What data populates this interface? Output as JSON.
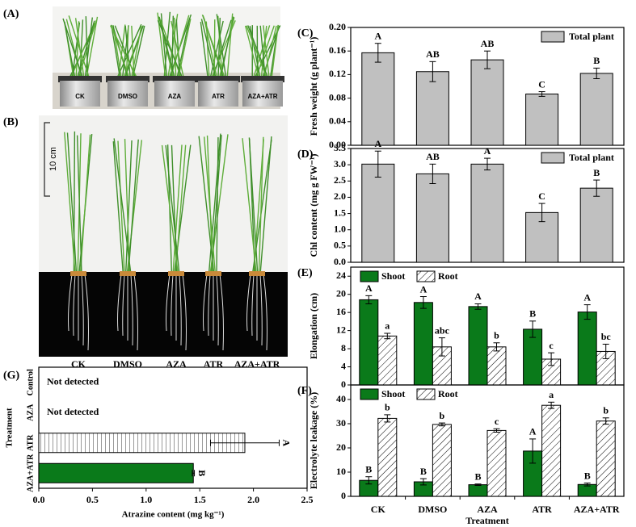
{
  "photo_a": {
    "label": "(A)",
    "pots": [
      "CK",
      "DMSO",
      "AZA",
      "ATR",
      "AZA+ATR"
    ]
  },
  "photo_b": {
    "label": "(B)",
    "scale": "10 cm",
    "treatments": [
      "CK",
      "DMSO",
      "AZA",
      "ATR",
      "AZA+ATR"
    ]
  },
  "chart_data": [
    {
      "type": "bar",
      "label": "(C)",
      "ylabel": "Fresh weight (g plant⁻¹)",
      "ylim": [
        0,
        0.2
      ],
      "yticks": [
        {
          "value": 0,
          "label": "0.00"
        },
        {
          "value": 0.04,
          "label": "0.04"
        },
        {
          "value": 0.08,
          "label": "0.08"
        },
        {
          "value": 0.12,
          "label": "0.12"
        },
        {
          "value": 0.16,
          "label": "0.16"
        },
        {
          "value": 0.2,
          "label": "0.20"
        }
      ],
      "legend": "upper right",
      "series": [
        {
          "name": "Total plant",
          "color": "#c0c0c0",
          "hatch": false,
          "values": [
            0.157,
            0.125,
            0.145,
            0.087,
            0.122
          ],
          "errors": [
            0.016,
            0.017,
            0.015,
            0.004,
            0.009
          ],
          "letters": [
            "A",
            "AB",
            "AB",
            "C",
            "B"
          ]
        }
      ]
    },
    {
      "type": "bar",
      "label": "(D)",
      "ylabel": "Chl content (mg g FW⁻¹)",
      "ylim": [
        0,
        3.5
      ],
      "yticks": [
        {
          "value": 0,
          "label": "0.0"
        },
        0.5,
        {
          "value": 1,
          "label": "1.0"
        },
        1.5,
        {
          "value": 2,
          "label": "2.0"
        },
        2.5,
        {
          "value": 3,
          "label": "3.0"
        },
        3.5
      ],
      "legend": "upper right",
      "series": [
        {
          "name": "Total plant",
          "color": "#c0c0c0",
          "hatch": false,
          "values": [
            3.02,
            2.72,
            3.02,
            1.53,
            2.28
          ],
          "errors": [
            0.4,
            0.3,
            0.18,
            0.28,
            0.25
          ],
          "letters": [
            "A",
            "AB",
            "A",
            "C",
            "B"
          ]
        }
      ]
    },
    {
      "type": "bar",
      "label": "(E)",
      "ylabel": "Elongation (cm)",
      "ylim": [
        0,
        26
      ],
      "yticks": [
        0,
        4,
        8,
        12,
        16,
        20,
        24
      ],
      "legend": "upper left",
      "series": [
        {
          "name": "Shoot",
          "color": "#0a7a1a",
          "hatch": false,
          "values": [
            18.8,
            18.2,
            17.3,
            12.3,
            16.1
          ],
          "errors": [
            0.9,
            1.3,
            0.6,
            1.8,
            1.6
          ],
          "letters": [
            "A",
            "A",
            "A",
            "B",
            "A"
          ]
        },
        {
          "name": "Root",
          "color": "#ffffff",
          "hatch": true,
          "values": [
            10.8,
            8.4,
            8.4,
            5.7,
            7.4
          ],
          "errors": [
            0.6,
            2.0,
            0.9,
            1.4,
            1.6
          ],
          "letters": [
            "a",
            "abc",
            "b",
            "c",
            "bc"
          ]
        }
      ]
    },
    {
      "type": "bar",
      "label": "(F)",
      "ylabel": "Electrolyte leakage (%)",
      "xlabel": "Treatment",
      "categories": [
        "CK",
        "DMSO",
        "AZA",
        "ATR",
        "AZA+ATR"
      ],
      "ylim": [
        0,
        46
      ],
      "yticks": [
        0,
        10,
        20,
        30,
        40
      ],
      "legend": "upper left",
      "series": [
        {
          "name": "Shoot",
          "color": "#0a7a1a",
          "hatch": false,
          "values": [
            6.6,
            6.0,
            4.8,
            18.7,
            4.9
          ],
          "errors": [
            1.5,
            1.3,
            0.3,
            5.0,
            0.6
          ],
          "letters": [
            "B",
            "B",
            "B",
            "A",
            "B"
          ]
        },
        {
          "name": "Root",
          "color": "#ffffff",
          "hatch": true,
          "values": [
            32.2,
            29.7,
            27.2,
            37.6,
            31.1
          ],
          "errors": [
            1.5,
            0.6,
            0.7,
            1.3,
            1.3
          ],
          "letters": [
            "b",
            "b",
            "c",
            "a",
            "b"
          ]
        }
      ]
    },
    {
      "type": "barh",
      "label": "(G)",
      "xlabel": "Atrazine content (mg kg⁻¹)",
      "ylabel": "Treatment",
      "categories": [
        "Control",
        "AZA",
        "ATR",
        "AZA+ATR"
      ],
      "values": [
        null,
        null,
        1.92,
        1.44
      ],
      "value_labels": [
        "Not detected",
        "Not detected",
        null,
        null
      ],
      "errors": [
        null,
        null,
        0.32,
        0.01
      ],
      "letters": [
        null,
        null,
        "A",
        "B"
      ],
      "colors": [
        "#ffffff",
        "#ffffff",
        "#ffffff",
        "#0a7a1a"
      ],
      "hatch": [
        false,
        false,
        true,
        false
      ],
      "xlim": [
        0,
        2.5
      ],
      "xticks": [
        {
          "value": 0,
          "label": "0.0"
        },
        0.5,
        {
          "value": 1,
          "label": "1.0"
        },
        1.5,
        {
          "value": 2,
          "label": "2.0"
        },
        2.5
      ]
    }
  ]
}
